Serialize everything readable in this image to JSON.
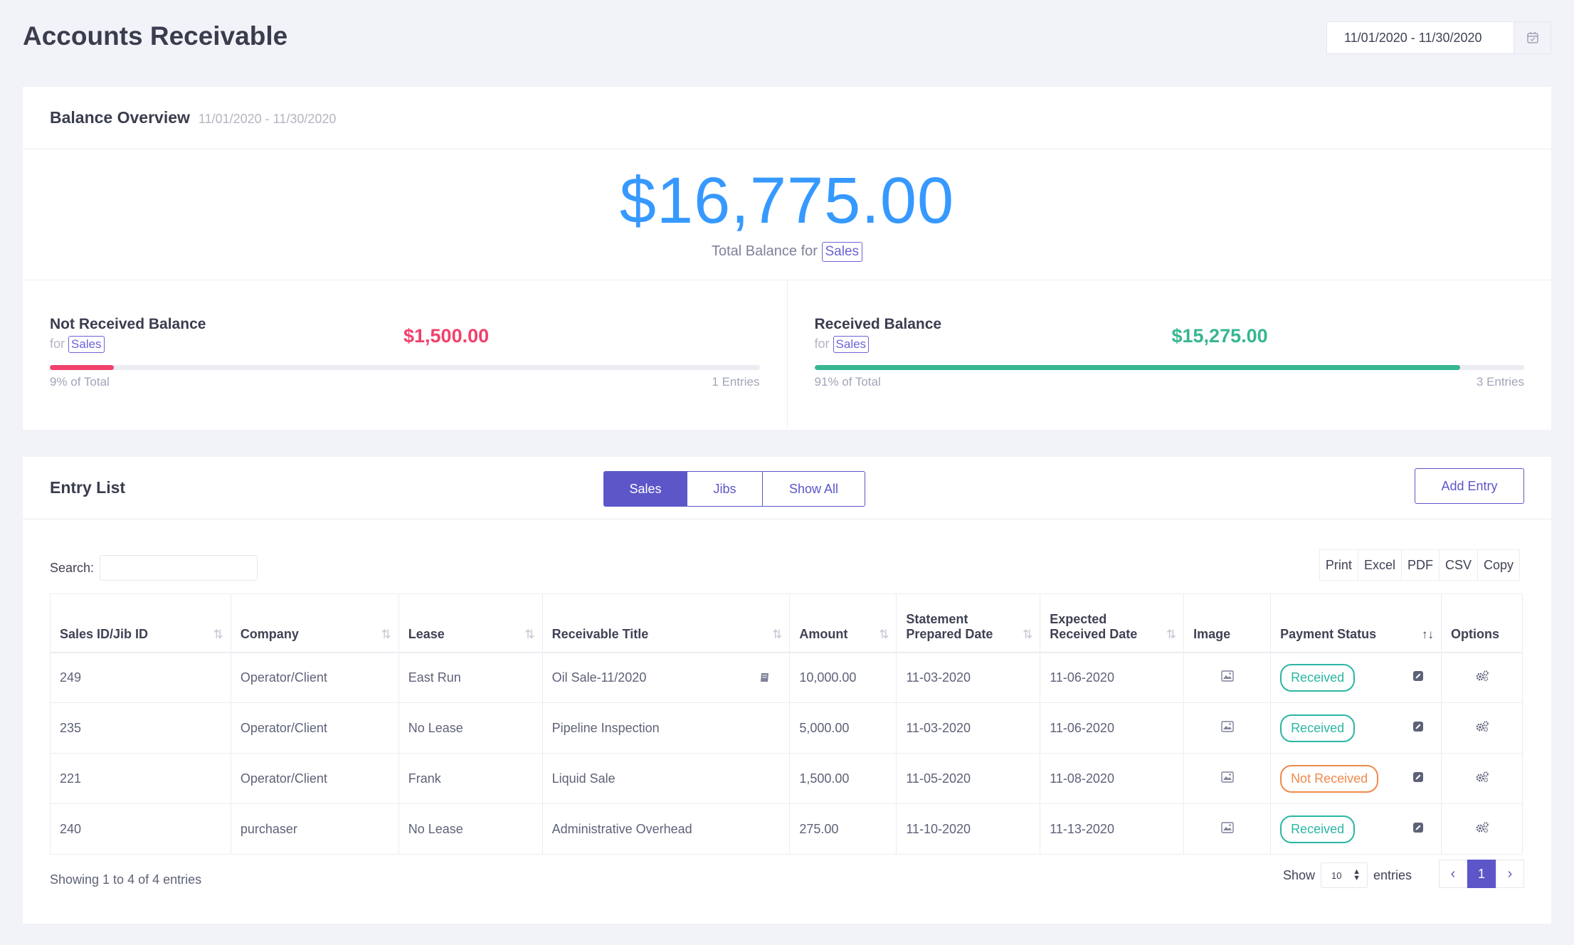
{
  "page": {
    "title": "Accounts Receivable"
  },
  "date_range": {
    "value": "11/01/2020 - 11/30/2020",
    "icon": "calendar-icon"
  },
  "overview": {
    "title": "Balance Overview",
    "subtitle": "11/01/2020 - 11/30/2020",
    "total_amount": "$16,775.00",
    "total_label": "Total Balance for",
    "total_tag": "Sales",
    "not_received": {
      "title": "Not Received Balance",
      "for_label": "for",
      "tag": "Sales",
      "amount": "$1,500.00",
      "percent_label": "9% of Total",
      "percent_value": 9,
      "entries": "1 Entries",
      "color": "#f1416c"
    },
    "received": {
      "title": "Received Balance",
      "for_label": "for",
      "tag": "Sales",
      "amount": "$15,275.00",
      "percent_label": "91% of Total",
      "percent_value": 91,
      "entries": "3 Entries",
      "color": "#36b691"
    }
  },
  "entries": {
    "title": "Entry List",
    "tabs": [
      "Sales",
      "Jibs",
      "Show All"
    ],
    "active_tab": "Sales",
    "add_button": "Add Entry",
    "search_label": "Search:",
    "search_value": "",
    "export_buttons": [
      "Print",
      "Excel",
      "PDF",
      "CSV",
      "Copy"
    ],
    "columns": {
      "id": "Sales ID/Jib ID",
      "company": "Company",
      "lease": "Lease",
      "title": "Receivable Title",
      "amount": "Amount",
      "stmt_line1": "Statement",
      "stmt_line2": "Prepared Date",
      "exp_line1": "Expected",
      "exp_line2": "Received Date",
      "image": "Image",
      "status": "Payment Status",
      "options": "Options"
    },
    "rows": [
      {
        "id": "249",
        "company": "Operator/Client",
        "lease": "East Run",
        "title": "Oil Sale-11/2020",
        "amount": "10,000.00",
        "stmt": "11-03-2020",
        "expected": "11-06-2020",
        "status": "Received"
      },
      {
        "id": "235",
        "company": "Operator/Client",
        "lease": "No Lease",
        "title": "Pipeline Inspection",
        "amount": "5,000.00",
        "stmt": "11-03-2020",
        "expected": "11-06-2020",
        "status": "Received"
      },
      {
        "id": "221",
        "company": "Operator/Client",
        "lease": "Frank",
        "title": "Liquid Sale",
        "amount": "1,500.00",
        "stmt": "11-05-2020",
        "expected": "11-08-2020",
        "status": "Not Received"
      },
      {
        "id": "240",
        "company": "purchaser",
        "lease": "No Lease",
        "title": "Administrative Overhead",
        "amount": "275.00",
        "stmt": "11-10-2020",
        "expected": "11-13-2020",
        "status": "Received"
      }
    ],
    "showing": "Showing 1 to 4 of 4 entries",
    "show_label": "Show",
    "page_length": "10",
    "entries_label": "entries",
    "current_page": "1"
  }
}
